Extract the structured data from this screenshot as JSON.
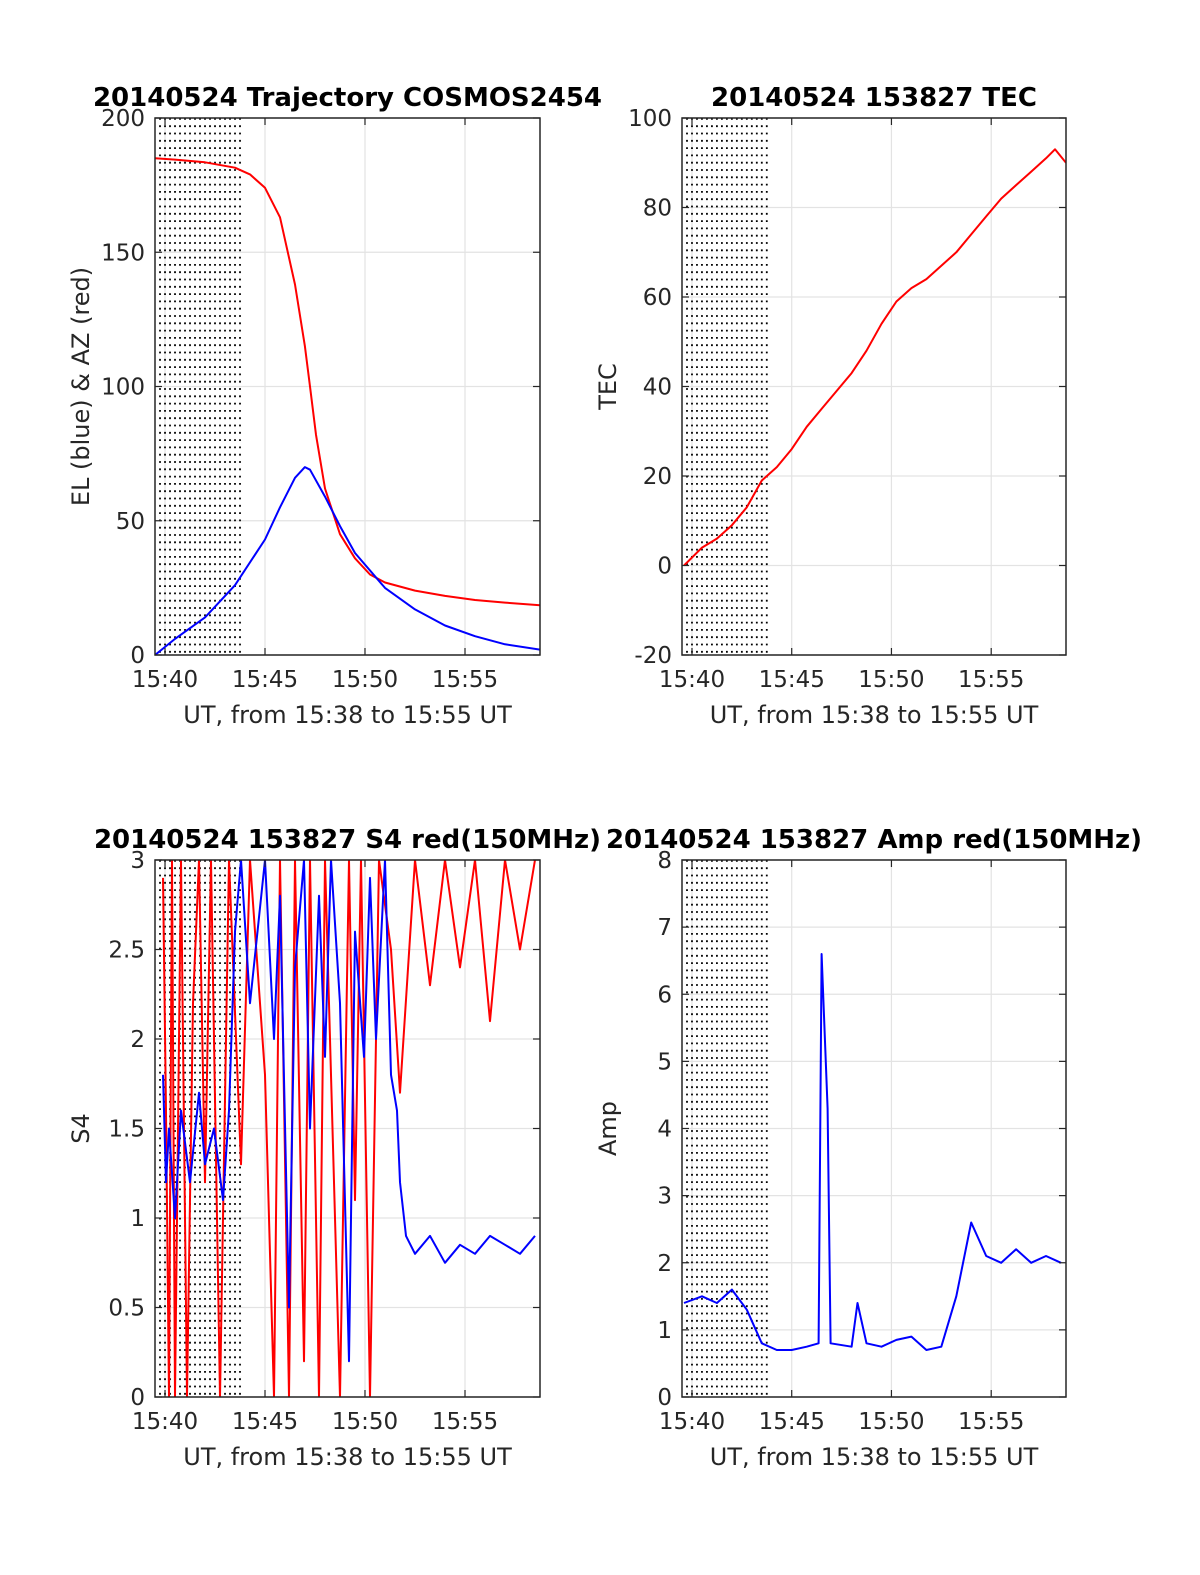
{
  "figure": {
    "background": "#ffffff"
  },
  "chart_data": [
    {
      "type": "line",
      "title": "20140524 Trajectory COSMOS2454",
      "xlabel": "UT, from 15:38 to 15:55 UT",
      "ylabel": "EL (blue) & AZ (red)",
      "xlim": [
        15.6333,
        16.9167
      ],
      "ylim": [
        0,
        200
      ],
      "xticks": [
        15.6667,
        16.0,
        16.3333,
        16.6667
      ],
      "xticklabels": [
        "15:40",
        "15:45",
        "15:50",
        "15:55"
      ],
      "yticks": [
        0,
        50,
        100,
        150,
        200
      ],
      "yticklabels": [
        "0",
        "50",
        "100",
        "150",
        "200"
      ],
      "grid": true,
      "dotted_minute_lines": true,
      "series": [
        {
          "color": "#ff0000",
          "data": [
            [
              15.6333,
              185
            ],
            [
              15.7,
              184.5
            ],
            [
              15.8,
              183.5
            ],
            [
              15.9,
              181.5
            ],
            [
              15.95,
              179
            ],
            [
              16.0,
              174
            ],
            [
              16.05,
              163
            ],
            [
              16.1,
              138
            ],
            [
              16.133,
              115
            ],
            [
              16.15,
              100
            ],
            [
              16.17,
              82
            ],
            [
              16.2,
              62
            ],
            [
              16.25,
              45
            ],
            [
              16.3,
              36
            ],
            [
              16.35,
              30
            ],
            [
              16.4,
              27
            ],
            [
              16.5,
              24
            ],
            [
              16.6,
              22
            ],
            [
              16.7,
              20.5
            ],
            [
              16.8,
              19.5
            ],
            [
              16.9167,
              18.5
            ]
          ]
        },
        {
          "color": "#0000ff",
          "data": [
            [
              15.6333,
              0
            ],
            [
              15.7,
              6
            ],
            [
              15.8,
              14
            ],
            [
              15.9,
              26
            ],
            [
              16.0,
              43
            ],
            [
              16.05,
              55
            ],
            [
              16.1,
              66
            ],
            [
              16.133,
              70
            ],
            [
              16.15,
              69
            ],
            [
              16.2,
              59
            ],
            [
              16.25,
              48
            ],
            [
              16.3,
              38
            ],
            [
              16.4,
              25
            ],
            [
              16.5,
              17
            ],
            [
              16.6,
              11
            ],
            [
              16.7,
              7
            ],
            [
              16.8,
              4
            ],
            [
              16.9167,
              2
            ]
          ]
        }
      ]
    },
    {
      "type": "line",
      "title": "20140524 153827 TEC",
      "xlabel": "UT, from 15:38 to 15:55 UT",
      "ylabel": "TEC",
      "xlim": [
        15.6333,
        16.9167
      ],
      "ylim": [
        -20,
        100
      ],
      "xticks": [
        15.6667,
        16.0,
        16.3333,
        16.6667
      ],
      "xticklabels": [
        "15:40",
        "15:45",
        "15:50",
        "15:55"
      ],
      "yticks": [
        -20,
        0,
        20,
        40,
        60,
        80,
        100
      ],
      "yticklabels": [
        "-20",
        "0",
        "20",
        "40",
        "60",
        "80",
        "100"
      ],
      "grid": true,
      "dotted_minute_lines": true,
      "series": [
        {
          "color": "#ff0000",
          "data": [
            [
              15.64,
              0
            ],
            [
              15.7,
              4
            ],
            [
              15.75,
              6
            ],
            [
              15.8,
              9
            ],
            [
              15.85,
              13
            ],
            [
              15.9,
              19
            ],
            [
              15.95,
              22
            ],
            [
              16.0,
              26
            ],
            [
              16.05,
              31
            ],
            [
              16.1,
              35
            ],
            [
              16.15,
              39
            ],
            [
              16.2,
              43
            ],
            [
              16.25,
              48
            ],
            [
              16.3,
              54
            ],
            [
              16.35,
              59
            ],
            [
              16.4,
              62
            ],
            [
              16.45,
              64
            ],
            [
              16.5,
              67
            ],
            [
              16.55,
              70
            ],
            [
              16.6,
              74
            ],
            [
              16.65,
              78
            ],
            [
              16.7,
              82
            ],
            [
              16.75,
              85
            ],
            [
              16.8,
              88
            ],
            [
              16.85,
              91
            ],
            [
              16.88,
              93
            ],
            [
              16.9167,
              90
            ]
          ]
        }
      ]
    },
    {
      "type": "line",
      "title": "20140524 153827 S4 red(150MHz)",
      "xlabel": "UT, from 15:38 to 15:55 UT",
      "ylabel": "S4",
      "xlim": [
        15.6333,
        16.9167
      ],
      "ylim": [
        0,
        3
      ],
      "xticks": [
        15.6667,
        16.0,
        16.3333,
        16.6667
      ],
      "xticklabels": [
        "15:40",
        "15:45",
        "15:50",
        "15:55"
      ],
      "yticks": [
        0,
        0.5,
        1,
        1.5,
        2,
        2.5,
        3
      ],
      "yticklabels": [
        "0",
        "0.5",
        "1",
        "1.5",
        "2",
        "2.5",
        "3"
      ],
      "grid": true,
      "dotted_minute_lines": true,
      "series": [
        {
          "color": "#ff0000",
          "data": [
            [
              15.66,
              2.9
            ],
            [
              15.67,
              1.6
            ],
            [
              15.68,
              0
            ],
            [
              15.69,
              3
            ],
            [
              15.7,
              0
            ],
            [
              15.72,
              3
            ],
            [
              15.74,
              0
            ],
            [
              15.76,
              2.2
            ],
            [
              15.78,
              3
            ],
            [
              15.8,
              1.2
            ],
            [
              15.82,
              3
            ],
            [
              15.85,
              0
            ],
            [
              15.88,
              3
            ],
            [
              15.92,
              1.3
            ],
            [
              15.95,
              3
            ],
            [
              16.0,
              1.8
            ],
            [
              16.03,
              0
            ],
            [
              16.05,
              3
            ],
            [
              16.08,
              0
            ],
            [
              16.1,
              3
            ],
            [
              16.13,
              0.2
            ],
            [
              16.15,
              3
            ],
            [
              16.18,
              0
            ],
            [
              16.2,
              3
            ],
            [
              16.25,
              0
            ],
            [
              16.28,
              3
            ],
            [
              16.3,
              1.1
            ],
            [
              16.32,
              3
            ],
            [
              16.35,
              0
            ],
            [
              16.38,
              3
            ],
            [
              16.42,
              2.5
            ],
            [
              16.45,
              1.7
            ],
            [
              16.5,
              3
            ],
            [
              16.55,
              2.3
            ],
            [
              16.6,
              3
            ],
            [
              16.65,
              2.4
            ],
            [
              16.7,
              3
            ],
            [
              16.75,
              2.1
            ],
            [
              16.8,
              3
            ],
            [
              16.85,
              2.5
            ],
            [
              16.9,
              3
            ]
          ]
        },
        {
          "color": "#0000ff",
          "data": [
            [
              15.66,
              1.8
            ],
            [
              15.67,
              1.2
            ],
            [
              15.68,
              1.5
            ],
            [
              15.7,
              1.0
            ],
            [
              15.72,
              1.6
            ],
            [
              15.75,
              1.2
            ],
            [
              15.78,
              1.7
            ],
            [
              15.8,
              1.3
            ],
            [
              15.83,
              1.5
            ],
            [
              15.86,
              1.1
            ],
            [
              15.88,
              1.6
            ],
            [
              15.9,
              2.6
            ],
            [
              15.92,
              3
            ],
            [
              15.95,
              2.2
            ],
            [
              16.0,
              3
            ],
            [
              16.03,
              2.0
            ],
            [
              16.05,
              2.8
            ],
            [
              16.08,
              0.5
            ],
            [
              16.1,
              2.4
            ],
            [
              16.13,
              3
            ],
            [
              16.15,
              1.5
            ],
            [
              16.18,
              2.8
            ],
            [
              16.2,
              1.9
            ],
            [
              16.22,
              3
            ],
            [
              16.25,
              2.2
            ],
            [
              16.28,
              0.2
            ],
            [
              16.3,
              2.6
            ],
            [
              16.33,
              1.9
            ],
            [
              16.35,
              2.9
            ],
            [
              16.37,
              2.0
            ],
            [
              16.4,
              3
            ],
            [
              16.42,
              1.8
            ],
            [
              16.44,
              1.6
            ],
            [
              16.45,
              1.2
            ],
            [
              16.47,
              0.9
            ],
            [
              16.5,
              0.8
            ],
            [
              16.55,
              0.9
            ],
            [
              16.6,
              0.75
            ],
            [
              16.65,
              0.85
            ],
            [
              16.7,
              0.8
            ],
            [
              16.75,
              0.9
            ],
            [
              16.8,
              0.85
            ],
            [
              16.85,
              0.8
            ],
            [
              16.9,
              0.9
            ]
          ]
        }
      ]
    },
    {
      "type": "line",
      "title": "20140524 153827 Amp red(150MHz)",
      "xlabel": "UT, from 15:38 to 15:55 UT",
      "ylabel": "Amp",
      "xlim": [
        15.6333,
        16.9167
      ],
      "ylim": [
        0,
        8
      ],
      "xticks": [
        15.6667,
        16.0,
        16.3333,
        16.6667
      ],
      "xticklabels": [
        "15:40",
        "15:45",
        "15:50",
        "15:55"
      ],
      "yticks": [
        0,
        1,
        2,
        3,
        4,
        5,
        6,
        7,
        8
      ],
      "yticklabels": [
        "0",
        "1",
        "2",
        "3",
        "4",
        "5",
        "6",
        "7",
        "8"
      ],
      "grid": true,
      "dotted_minute_lines": true,
      "series": [
        {
          "color": "#0000ff",
          "data": [
            [
              15.64,
              1.4
            ],
            [
              15.7,
              1.5
            ],
            [
              15.75,
              1.4
            ],
            [
              15.8,
              1.6
            ],
            [
              15.85,
              1.3
            ],
            [
              15.9,
              0.8
            ],
            [
              15.95,
              0.7
            ],
            [
              16.0,
              0.7
            ],
            [
              16.05,
              0.75
            ],
            [
              16.09,
              0.8
            ],
            [
              16.1,
              6.6
            ],
            [
              16.12,
              4.3
            ],
            [
              16.13,
              0.8
            ],
            [
              16.2,
              0.75
            ],
            [
              16.22,
              1.4
            ],
            [
              16.25,
              0.8
            ],
            [
              16.3,
              0.75
            ],
            [
              16.35,
              0.85
            ],
            [
              16.4,
              0.9
            ],
            [
              16.45,
              0.7
            ],
            [
              16.5,
              0.75
            ],
            [
              16.55,
              1.5
            ],
            [
              16.6,
              2.6
            ],
            [
              16.65,
              2.1
            ],
            [
              16.7,
              2.0
            ],
            [
              16.75,
              2.2
            ],
            [
              16.8,
              2.0
            ],
            [
              16.85,
              2.1
            ],
            [
              16.9,
              2.0
            ]
          ]
        }
      ]
    }
  ]
}
